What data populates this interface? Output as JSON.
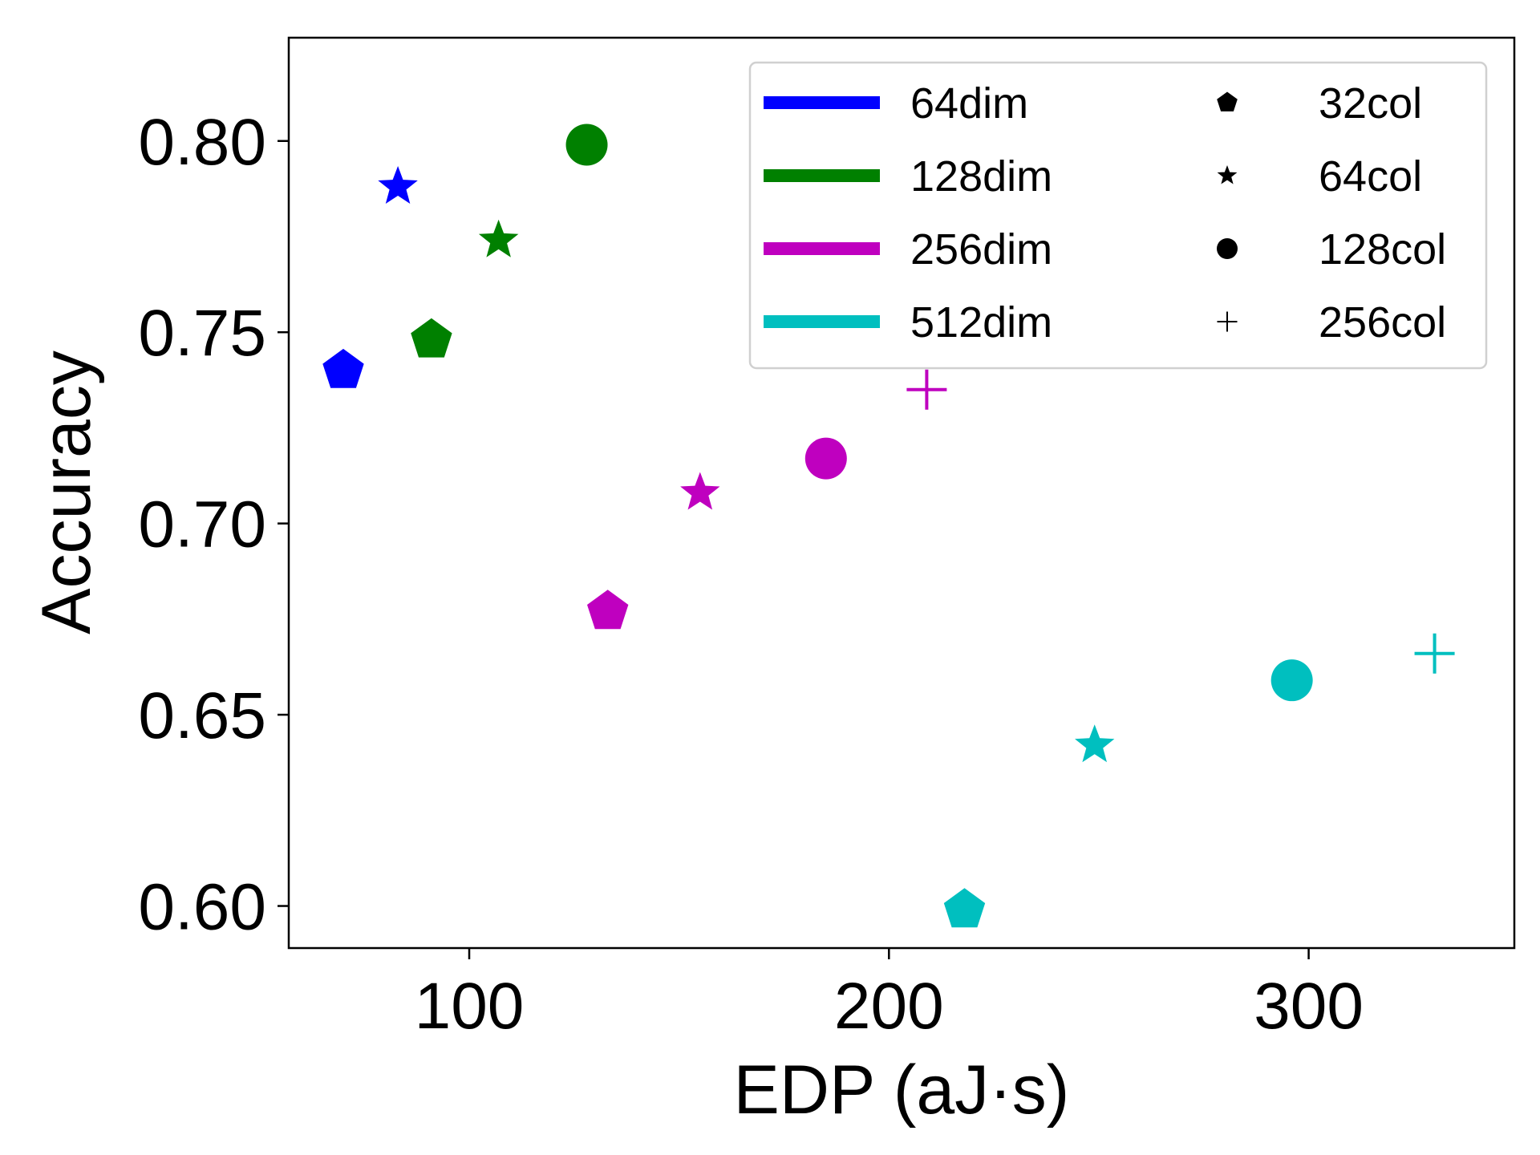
{
  "chart_data": {
    "type": "scatter",
    "title": "",
    "xlabel": "EDP (aJ·s)",
    "ylabel": "Accuracy",
    "xlim": [
      57,
      349
    ],
    "ylim": [
      0.589,
      0.827
    ],
    "xticks": [
      100,
      200,
      300
    ],
    "xtick_labels": [
      "100",
      "200",
      "300"
    ],
    "yticks": [
      0.6,
      0.65,
      0.7,
      0.75,
      0.8
    ],
    "ytick_labels": [
      "0.60",
      "0.65",
      "0.70",
      "0.75",
      "0.80"
    ],
    "grid": false,
    "legend_position": "top-right",
    "color_legend": [
      {
        "label": "64dim",
        "color": "#0000ff"
      },
      {
        "label": "128dim",
        "color": "#008000"
      },
      {
        "label": "256dim",
        "color": "#bf00bf"
      },
      {
        "label": "512dim",
        "color": "#00bfbf"
      }
    ],
    "marker_legend": [
      {
        "label": "32col",
        "marker": "pentagon"
      },
      {
        "label": "64col",
        "marker": "star"
      },
      {
        "label": "128col",
        "marker": "circle"
      },
      {
        "label": "256col",
        "marker": "plus"
      }
    ],
    "series": [
      {
        "name": "64dim",
        "color": "#0000ff",
        "points": [
          {
            "x": 70,
            "y": 0.74,
            "cols": "32col",
            "marker": "pentagon"
          },
          {
            "x": 83,
            "y": 0.788,
            "cols": "64col",
            "marker": "star"
          }
        ]
      },
      {
        "name": "128dim",
        "color": "#008000",
        "points": [
          {
            "x": 91,
            "y": 0.748,
            "cols": "32col",
            "marker": "pentagon"
          },
          {
            "x": 107,
            "y": 0.774,
            "cols": "64col",
            "marker": "star"
          },
          {
            "x": 128,
            "y": 0.799,
            "cols": "128col",
            "marker": "circle"
          }
        ]
      },
      {
        "name": "256dim",
        "color": "#bf00bf",
        "points": [
          {
            "x": 133,
            "y": 0.677,
            "cols": "32col",
            "marker": "pentagon"
          },
          {
            "x": 155,
            "y": 0.708,
            "cols": "64col",
            "marker": "star"
          },
          {
            "x": 185,
            "y": 0.717,
            "cols": "128col",
            "marker": "circle"
          },
          {
            "x": 209,
            "y": 0.735,
            "cols": "256col",
            "marker": "plus"
          }
        ]
      },
      {
        "name": "512dim",
        "color": "#00bfbf",
        "points": [
          {
            "x": 218,
            "y": 0.599,
            "cols": "32col",
            "marker": "pentagon"
          },
          {
            "x": 249,
            "y": 0.642,
            "cols": "64col",
            "marker": "star"
          },
          {
            "x": 296,
            "y": 0.659,
            "cols": "128col",
            "marker": "circle"
          },
          {
            "x": 330,
            "y": 0.666,
            "cols": "256col",
            "marker": "plus"
          }
        ]
      }
    ]
  }
}
